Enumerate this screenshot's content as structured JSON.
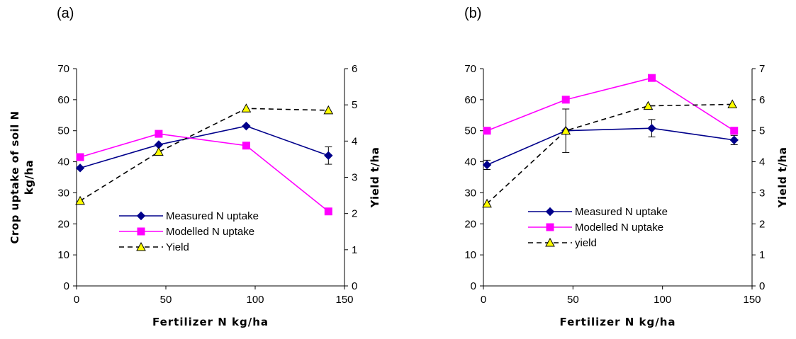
{
  "chart_data": [
    {
      "type": "line",
      "panel_label": "(a)",
      "xlabel": "Fertilizer N kg/ha",
      "ylabel": "Crop uptake of soil N kg/ha",
      "ylabel_lines": [
        "Crop uptake of soil N",
        "kg/ha"
      ],
      "y2label": "Yield t/ha",
      "xlim": [
        0,
        150
      ],
      "xticks": [
        0,
        50,
        100,
        150
      ],
      "ylim": [
        0,
        70
      ],
      "yticks": [
        0,
        10,
        20,
        30,
        40,
        50,
        60,
        70
      ],
      "y2lim": [
        0,
        6
      ],
      "y2ticks": [
        0,
        1,
        2,
        3,
        4,
        5,
        6
      ],
      "legend_position": "lower-center",
      "series": [
        {
          "name": "Measured N uptake",
          "axis": "left",
          "color": "#00008B",
          "marker": "diamond",
          "dash": "",
          "x": [
            2,
            46,
            95,
            141
          ],
          "y": [
            38,
            45.5,
            51.5,
            42
          ],
          "err": [
            0,
            0,
            0,
            2.8
          ]
        },
        {
          "name": "Modelled N uptake",
          "axis": "left",
          "color": "#FF00FF",
          "marker": "square",
          "dash": "",
          "x": [
            2,
            46,
            95,
            141
          ],
          "y": [
            41.5,
            49,
            45.2,
            24
          ]
        },
        {
          "name": "Yield",
          "axis": "right",
          "color": "#000000",
          "marker": "triangle",
          "dash": "7,5",
          "x": [
            2,
            46,
            95,
            141
          ],
          "y": [
            2.35,
            3.7,
            4.9,
            4.85
          ]
        }
      ]
    },
    {
      "type": "line",
      "panel_label": "(b)",
      "xlabel": "Fertilizer N kg/ha",
      "ylabel": "",
      "ylabel_lines": [],
      "y2label": "Yield t/ha",
      "xlim": [
        0,
        150
      ],
      "xticks": [
        0,
        50,
        100,
        150
      ],
      "ylim": [
        0,
        70
      ],
      "yticks": [
        0,
        10,
        20,
        30,
        40,
        50,
        60,
        70
      ],
      "y2lim": [
        0,
        7
      ],
      "y2ticks": [
        0,
        1,
        2,
        3,
        4,
        5,
        6,
        7
      ],
      "legend_position": "lower-center",
      "series": [
        {
          "name": "Measured N uptake",
          "axis": "left",
          "color": "#00008B",
          "marker": "diamond",
          "dash": "",
          "x": [
            2,
            46,
            94,
            140
          ],
          "y": [
            39,
            50,
            50.8,
            47
          ],
          "err": [
            1.5,
            7,
            2.8,
            1.5
          ]
        },
        {
          "name": "Modelled N uptake",
          "axis": "left",
          "color": "#FF00FF",
          "marker": "square",
          "dash": "",
          "x": [
            2,
            46,
            94,
            140
          ],
          "y": [
            50,
            60,
            67,
            50
          ]
        },
        {
          "name": "yield",
          "axis": "right",
          "color": "#000000",
          "marker": "triangle",
          "dash": "7,5",
          "x": [
            2,
            46,
            92,
            139
          ],
          "y": [
            2.65,
            5,
            5.8,
            5.85
          ]
        }
      ]
    }
  ]
}
